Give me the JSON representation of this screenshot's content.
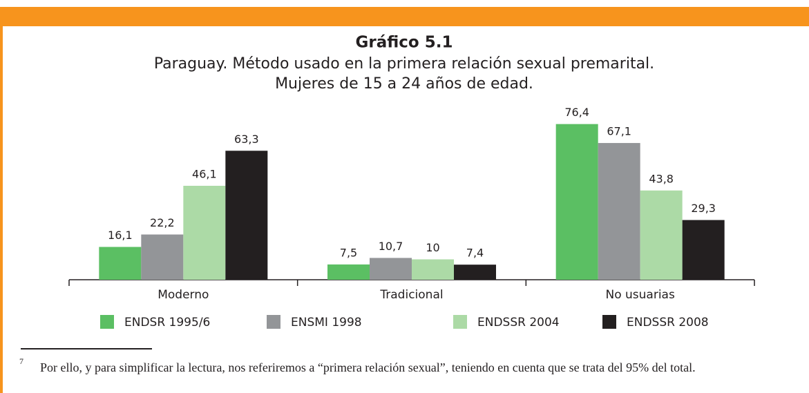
{
  "chart_data": {
    "type": "bar",
    "title": "Gráfico 5.1",
    "subtitle": [
      "Paraguay. Método usado en la primera relación sexual premarital.",
      "Mujeres de 15 a 24 años de edad."
    ],
    "categories": [
      "Moderno",
      "Tradicional",
      "No usuarias"
    ],
    "series": [
      {
        "name": "ENDSR 1995/6",
        "color": "#5bbf63",
        "values": [
          16.1,
          7.5,
          76.4
        ],
        "value_labels": [
          "16,1",
          "7,5",
          "76,4"
        ]
      },
      {
        "name": "ENSMI 1998",
        "color": "#939598",
        "values": [
          22.2,
          10.7,
          67.1
        ],
        "value_labels": [
          "22,2",
          "10,7",
          "67,1"
        ]
      },
      {
        "name": "ENDSSR 2004",
        "color": "#acdaa6",
        "values": [
          46.1,
          10,
          43.8
        ],
        "value_labels": [
          "46,1",
          "10",
          "43,8"
        ]
      },
      {
        "name": "ENDSSR 2008",
        "color": "#231f20",
        "values": [
          63.3,
          7.4,
          29.3
        ],
        "value_labels": [
          "63,3",
          "7,4",
          "29,3"
        ]
      }
    ],
    "ylim": [
      0,
      80
    ],
    "legend": "bottom"
  },
  "footnote": {
    "marker": "7",
    "text": "Por ello, y para simplificar la lectura, nos referiremos a “primera relación sexual”, teniendo en cuenta que se trata del 95% del total."
  }
}
